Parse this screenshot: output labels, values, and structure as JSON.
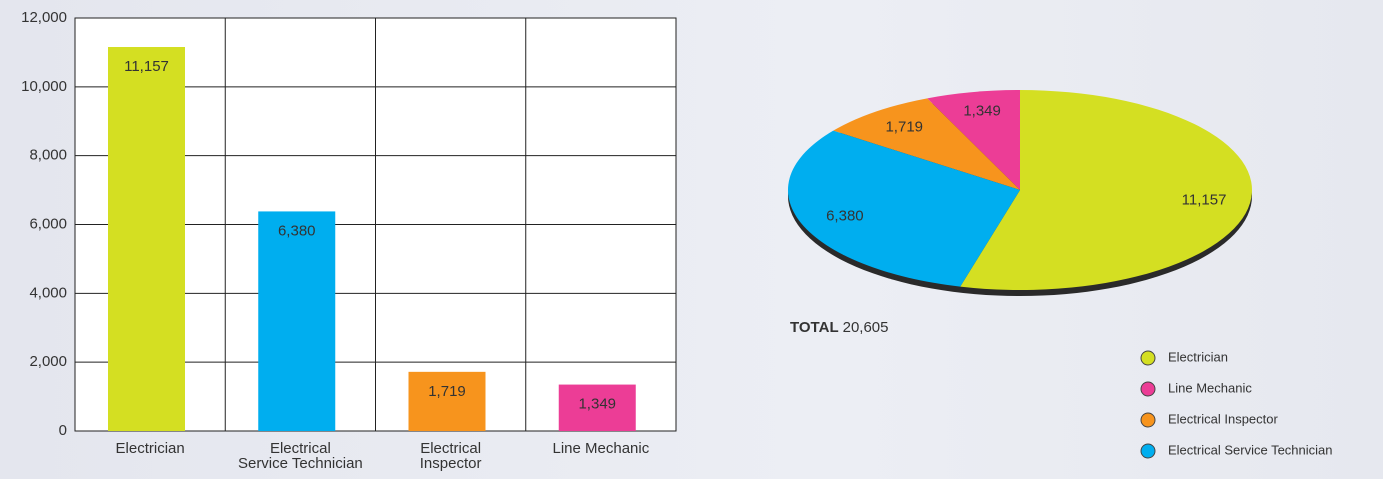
{
  "chart_data": [
    {
      "type": "bar",
      "categories": [
        "Electrician",
        "Electrical\nService Technician",
        "Electrical\nInspector",
        "Line Mechanic"
      ],
      "values": [
        11157,
        6380,
        1719,
        1349
      ],
      "value_labels": [
        "11,157",
        "6,380",
        "1,719",
        "1,349"
      ],
      "colors": [
        "#d4df22",
        "#00aeef",
        "#f7941d",
        "#ec3d96"
      ],
      "ylim": [
        0,
        12000
      ],
      "yticks": [
        0,
        {
          "value": 2000,
          "label": "2,000"
        },
        {
          "value": 4000,
          "label": "4,000"
        },
        {
          "value": 6000,
          "label": "6,000"
        },
        {
          "value": 8000,
          "label": "8,000"
        },
        {
          "value": 10000,
          "label": "10,000"
        },
        {
          "value": 12000,
          "label": "12,000"
        }
      ],
      "grid": true
    },
    {
      "type": "pie",
      "categories": [
        "Electrician",
        "Line Mechanic",
        "Electrical Inspector",
        "Electrical Service Technician"
      ],
      "values": [
        11157,
        1349,
        1719,
        6380
      ],
      "value_labels": [
        "11,157",
        "1,349",
        "1,719",
        "6,380"
      ],
      "colors": [
        "#d4df22",
        "#ec3d96",
        "#f7941d",
        "#00aeef"
      ],
      "total_label": "TOTAL",
      "total": 20605,
      "total_value_label": "20,605"
    }
  ]
}
